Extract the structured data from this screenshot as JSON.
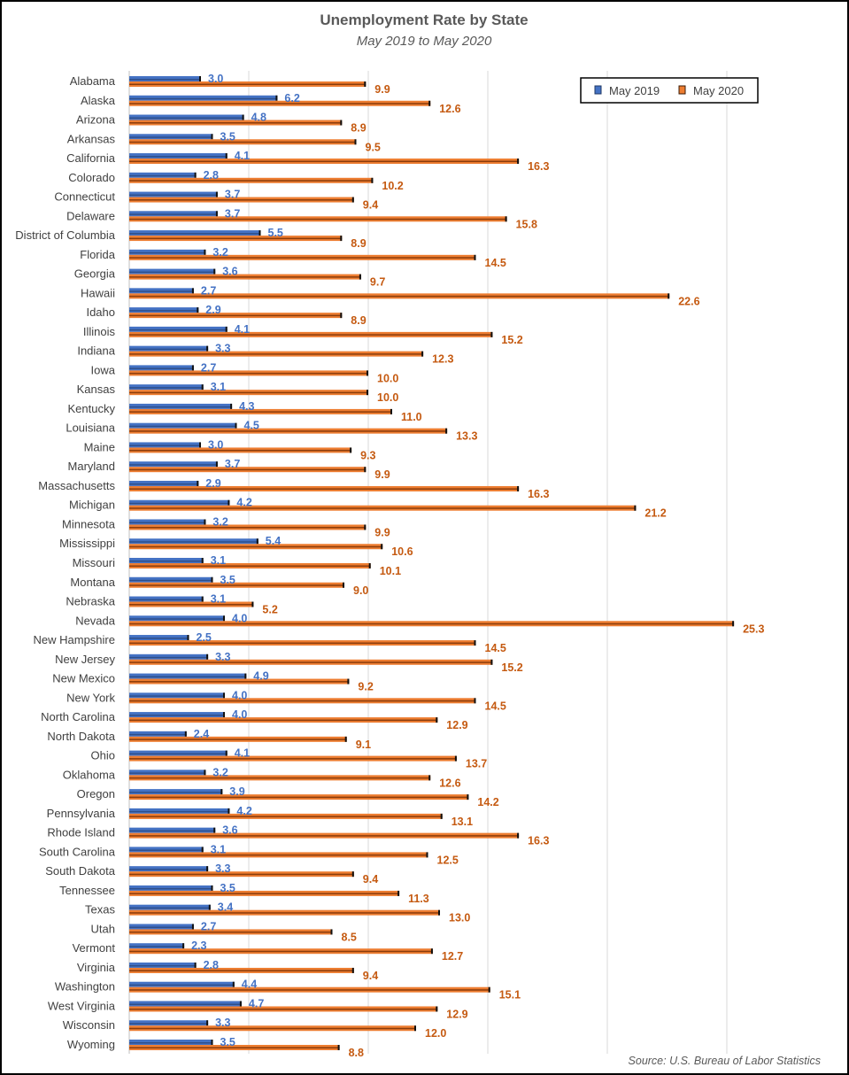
{
  "chart_data": {
    "type": "bar",
    "orientation": "horizontal",
    "title": "Unemployment Rate by State",
    "subtitle": "May 2019 to May 2020",
    "source": "Source: U.S. Bureau of Labor Statistics",
    "xlim": [
      0,
      30
    ],
    "grid": true,
    "gridline_step": 5,
    "legend_position": "top-right",
    "categories": [
      "Alabama",
      "Alaska",
      "Arizona",
      "Arkansas",
      "California",
      "Colorado",
      "Connecticut",
      "Delaware",
      "District of Columbia",
      "Florida",
      "Georgia",
      "Hawaii",
      "Idaho",
      "Illinois",
      "Indiana",
      "Iowa",
      "Kansas",
      "Kentucky",
      "Louisiana",
      "Maine",
      "Maryland",
      "Massachusetts",
      "Michigan",
      "Minnesota",
      "Mississippi",
      "Missouri",
      "Montana",
      "Nebraska",
      "Nevada",
      "New Hampshire",
      "New Jersey",
      "New Mexico",
      "New York",
      "North Carolina",
      "North Dakota",
      "Ohio",
      "Oklahoma",
      "Oregon",
      "Pennsylvania",
      "Rhode Island",
      "South Carolina",
      "South Dakota",
      "Tennessee",
      "Texas",
      "Utah",
      "Vermont",
      "Virginia",
      "Washington",
      "West Virginia",
      "Wisconsin",
      "Wyoming"
    ],
    "series": [
      {
        "name": "May 2019",
        "color": "#4472c4",
        "values": [
          3.0,
          6.2,
          4.8,
          3.5,
          4.1,
          2.8,
          3.7,
          3.7,
          5.5,
          3.2,
          3.6,
          2.7,
          2.9,
          4.1,
          3.3,
          2.7,
          3.1,
          4.3,
          4.5,
          3.0,
          3.7,
          2.9,
          4.2,
          3.2,
          5.4,
          3.1,
          3.5,
          3.1,
          4.0,
          2.5,
          3.3,
          4.9,
          4.0,
          4.0,
          2.4,
          4.1,
          3.2,
          3.9,
          4.2,
          3.6,
          3.1,
          3.3,
          3.5,
          3.4,
          2.7,
          2.3,
          2.8,
          4.4,
          4.7,
          3.3,
          3.5
        ]
      },
      {
        "name": "May 2020",
        "color": "#ed7d31",
        "values": [
          9.9,
          12.6,
          8.9,
          9.5,
          16.3,
          10.2,
          9.4,
          15.8,
          8.9,
          14.5,
          9.7,
          22.6,
          8.9,
          15.2,
          12.3,
          10.0,
          10.0,
          11.0,
          13.3,
          9.3,
          9.9,
          16.3,
          21.2,
          9.9,
          10.6,
          10.1,
          9.0,
          5.2,
          25.3,
          14.5,
          15.2,
          9.2,
          14.5,
          12.9,
          9.1,
          13.7,
          12.6,
          14.2,
          13.1,
          16.3,
          12.5,
          9.4,
          11.3,
          13.0,
          8.5,
          12.7,
          9.4,
          15.1,
          12.9,
          12.0,
          8.8
        ]
      }
    ]
  }
}
